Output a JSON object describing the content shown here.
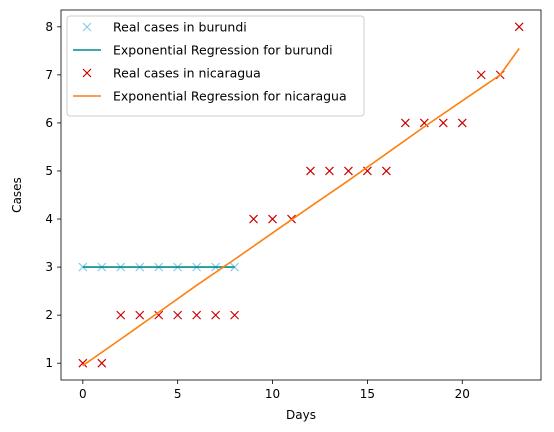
{
  "chart_data": {
    "type": "line",
    "title": "",
    "xlabel": "Days",
    "ylabel": "Cases",
    "xlim": [
      -1.15,
      24.15
    ],
    "ylim": [
      0.65,
      8.35
    ],
    "xticks": [
      0,
      5,
      10,
      15,
      20
    ],
    "yticks": [
      1,
      2,
      3,
      4,
      5,
      6,
      7,
      8
    ],
    "grid": false,
    "legend_position": "top-left",
    "series": [
      {
        "name": "Real cases in burundi",
        "kind": "scatter",
        "marker": "x",
        "color": "#87ceeb",
        "x": [
          0,
          1,
          2,
          3,
          4,
          5,
          6,
          7,
          8
        ],
        "y": [
          3,
          3,
          3,
          3,
          3,
          3,
          3,
          3,
          3
        ]
      },
      {
        "name": "Exponential Regression for burundi",
        "kind": "line",
        "color": "#008b8b",
        "x": [
          0,
          8
        ],
        "y": [
          3,
          3
        ]
      },
      {
        "name": "Real cases in nicaragua",
        "kind": "scatter",
        "marker": "x",
        "color": "#cc0000",
        "x": [
          0,
          1,
          2,
          3,
          4,
          5,
          6,
          7,
          8,
          9,
          10,
          11,
          12,
          13,
          14,
          15,
          16,
          17,
          18,
          19,
          20,
          21,
          22,
          23
        ],
        "y": [
          1,
          1,
          2,
          2,
          2,
          2,
          2,
          2,
          2,
          4,
          4,
          4,
          5,
          5,
          5,
          5,
          5,
          6,
          6,
          6,
          6,
          7,
          7,
          8
        ]
      },
      {
        "name": "Exponential Regression for nicaragua",
        "kind": "line",
        "color": "#ff7f0e",
        "x": [
          0,
          2,
          4,
          6,
          8,
          10,
          12,
          14,
          16,
          18,
          20,
          22,
          23
        ],
        "y": [
          0.95,
          1.5,
          2.06,
          2.62,
          3.16,
          3.71,
          4.26,
          4.8,
          5.36,
          5.92,
          6.46,
          7.0,
          7.55
        ]
      }
    ]
  }
}
